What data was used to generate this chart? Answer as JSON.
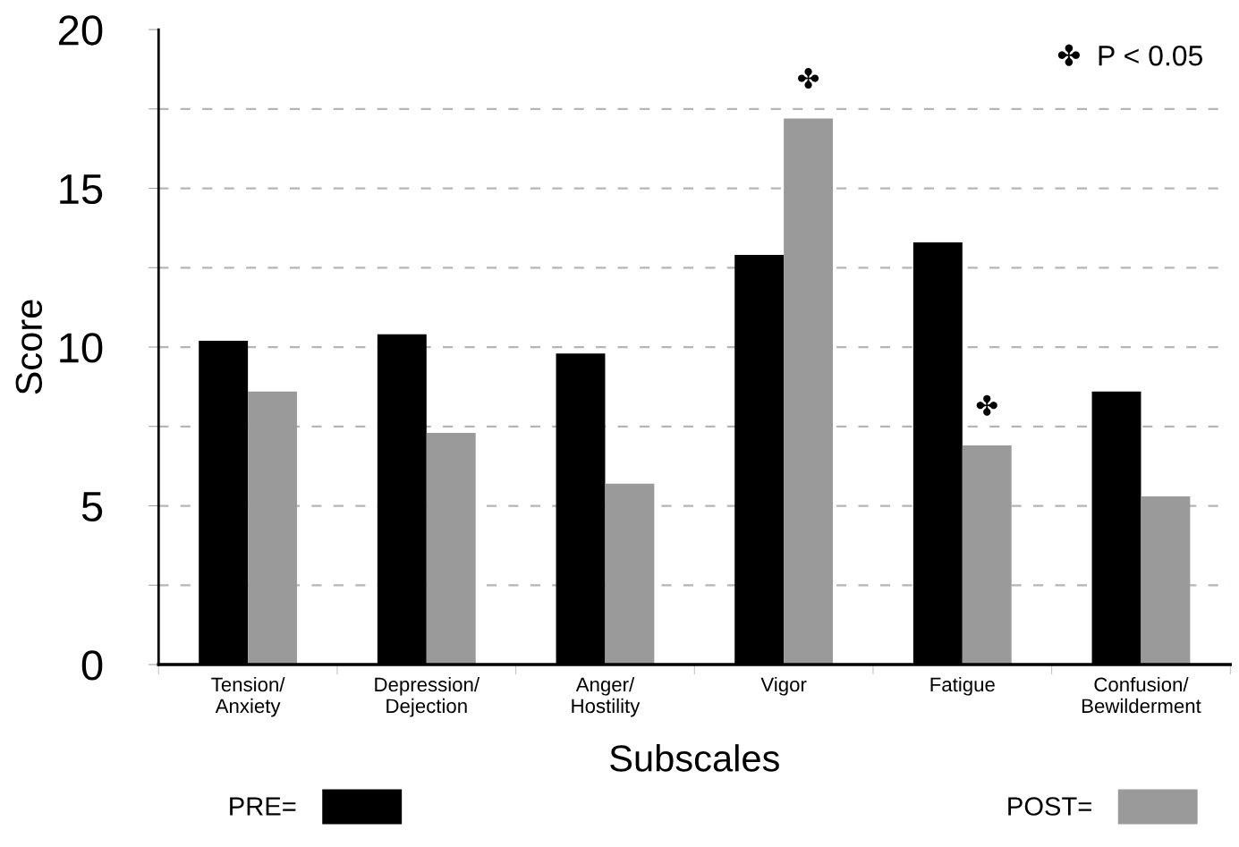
{
  "chart_data": {
    "type": "bar",
    "xlabel": "Subscales",
    "ylabel": "Score",
    "categories": [
      "Tension/\nAnxiety",
      "Depression/\nDejection",
      "Anger/\nHostility",
      "Vigor",
      "Fatigue",
      "Confusion/\nBewilderment"
    ],
    "series": [
      {
        "name": "PRE=",
        "color": "#000000",
        "values": [
          10.2,
          10.4,
          9.8,
          12.9,
          13.3,
          8.6
        ]
      },
      {
        "name": "POST=",
        "color": "#9a9a9a",
        "values": [
          8.6,
          7.3,
          5.7,
          17.2,
          6.9,
          5.3
        ]
      }
    ],
    "ylim": [
      0,
      20
    ],
    "yticks": [
      0,
      {
        "value": 2.5,
        "label": null
      },
      5,
      {
        "value": 7.5,
        "label": null
      },
      10,
      {
        "value": 12.5,
        "label": null
      },
      15,
      {
        "value": 17.5,
        "label": null
      },
      20
    ],
    "grid": "y",
    "legend": "bottom",
    "annotations": [
      "✤  P < 0.05",
      {
        "text": "✤",
        "x": "Vigor",
        "y": 17.2
      },
      {
        "text": "✤",
        "x": "Fatigue",
        "y": 6.9
      }
    ]
  }
}
